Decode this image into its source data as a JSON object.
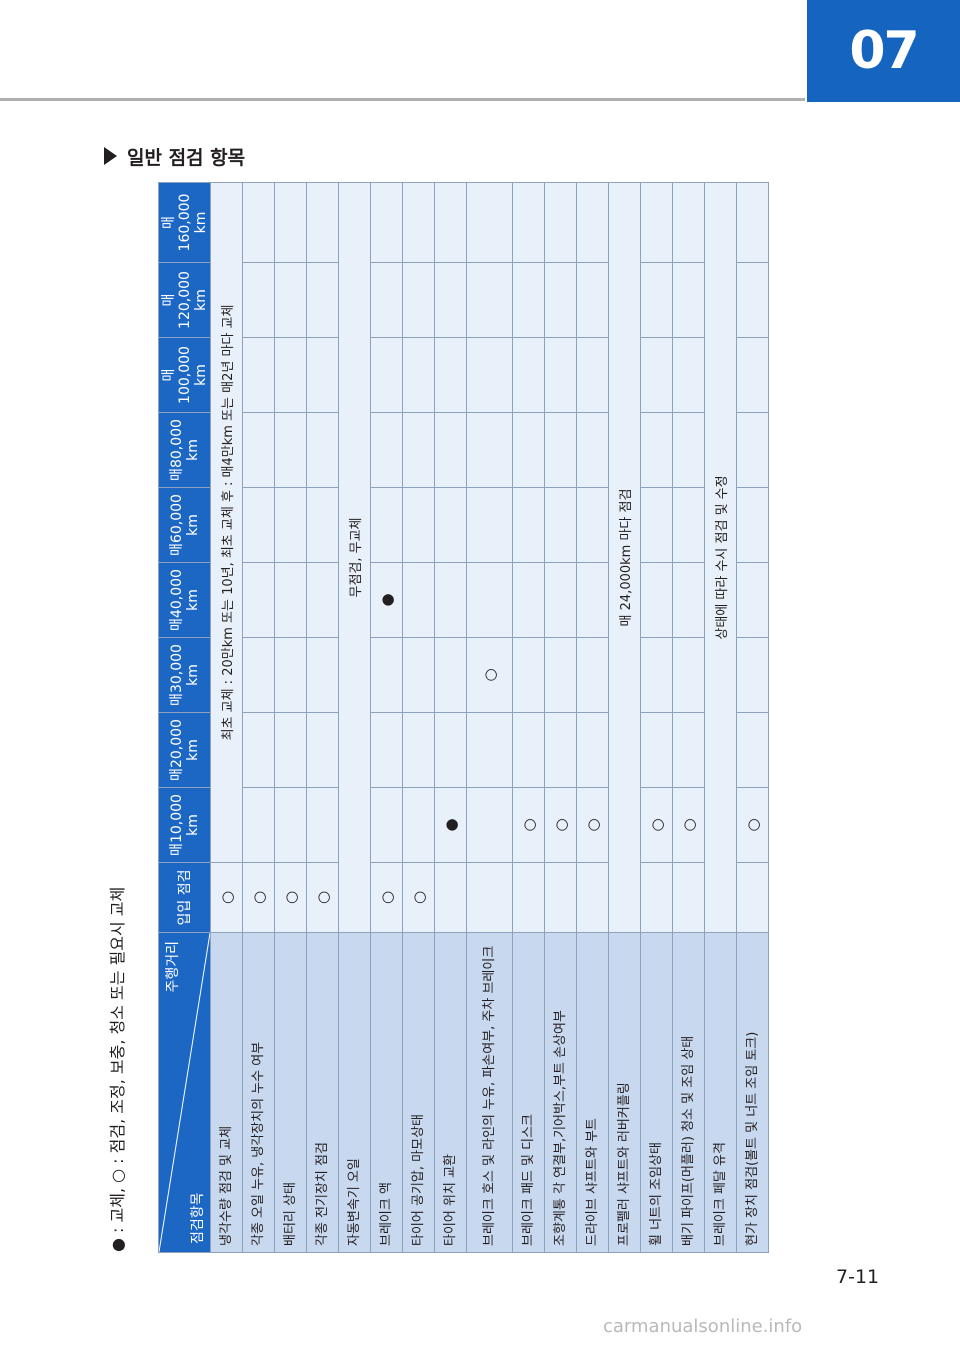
{
  "header": {
    "chapter": "07"
  },
  "section": {
    "title": "일반 점검 항목"
  },
  "legend": {
    "text": "● : 교체, ○ : 점검, 조정, 보충, 청소 또는 필요시 교체"
  },
  "table": {
    "corner_top": "주행거리",
    "corner_bottom": "점검항목",
    "intervals": [
      "입입 점검",
      "매10,000 km",
      "매20,000 km",
      "매30,000 km",
      "매40,000 km",
      "매60,000 km",
      "매80,000 km",
      "매100,000 km",
      "매120,000 km",
      "매160,000 km"
    ],
    "rows": [
      {
        "item": "냉각수량 점검 및 교체",
        "c0": "○",
        "span": "최초 교체 : 20만km 또는 10년, 최초 교체 후 : 매4만km 또는 매2년 마다 교체"
      },
      {
        "item": "각종 오일 누유, 냉각장치의 누수 여부",
        "c0": "○"
      },
      {
        "item": "배터리 상태",
        "c0": "○"
      },
      {
        "item": "각종 전기장치 점검",
        "c0": "○"
      },
      {
        "item": "자동변속기 오일",
        "span": "무점검, 무교체"
      },
      {
        "item": "브레이크 액",
        "c0": "○",
        "c4": "●"
      },
      {
        "item": "타이어 공기압, 마모상태",
        "c0": "○"
      },
      {
        "item": "타이어 위치 교환",
        "c1": "●"
      },
      {
        "item": "브레이크 호스 및 라인의 누유, 파손여부, 주차 브레이크",
        "c3": "○"
      },
      {
        "item": "브레이크 패드 및 디스크",
        "c1": "○"
      },
      {
        "item": "조향계통 각 연결부,기어박스,부트 손상여부",
        "c1": "○"
      },
      {
        "item": "드라이브 샤프트와 부트",
        "c1": "○"
      },
      {
        "item": "프로펠러 샤프트와 러버커플링",
        "span": "매 24,000km 마다 점검"
      },
      {
        "item": "휠 너트의 조임상태",
        "c1": "○"
      },
      {
        "item": "배기 파이프(머플러) 청소 및 조임 상태",
        "c1": "○"
      },
      {
        "item": "브레이크 페달 유격",
        "span": "상태에 따라 수시 점검 및 수정"
      },
      {
        "item": "현가 장치 점검(볼트 및 너트 조임 토크)",
        "c1": "○"
      }
    ]
  },
  "footer": {
    "page_number": "7-11",
    "watermark": "carmanualsonline.info"
  }
}
